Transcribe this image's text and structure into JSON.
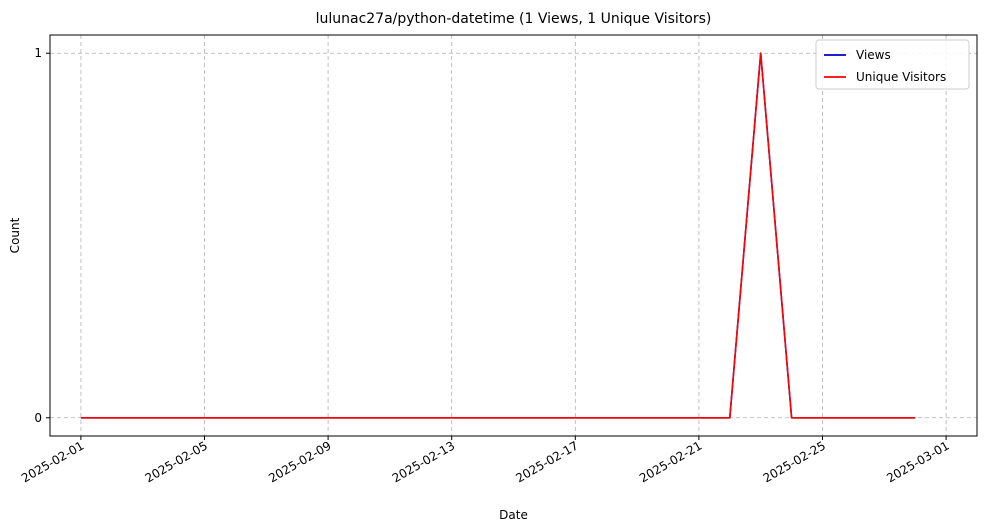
{
  "chart_data": {
    "type": "line",
    "title": "lulunac27a/python-datetime (1 Views, 1 Unique Visitors)",
    "xlabel": "Date",
    "ylabel": "Count",
    "x": [
      "2025-02-01",
      "2025-02-02",
      "2025-02-03",
      "2025-02-04",
      "2025-02-05",
      "2025-02-06",
      "2025-02-07",
      "2025-02-08",
      "2025-02-09",
      "2025-02-10",
      "2025-02-11",
      "2025-02-12",
      "2025-02-13",
      "2025-02-14",
      "2025-02-15",
      "2025-02-16",
      "2025-02-17",
      "2025-02-18",
      "2025-02-19",
      "2025-02-20",
      "2025-02-21",
      "2025-02-22",
      "2025-02-23",
      "2025-02-24",
      "2025-02-25",
      "2025-02-26",
      "2025-02-27",
      "2025-02-28"
    ],
    "series": [
      {
        "name": "Views",
        "color": "#0000cc",
        "values": [
          0,
          0,
          0,
          0,
          0,
          0,
          0,
          0,
          0,
          0,
          0,
          0,
          0,
          0,
          0,
          0,
          0,
          0,
          0,
          0,
          0,
          0,
          1,
          0,
          0,
          0,
          0,
          0
        ]
      },
      {
        "name": "Unique Visitors",
        "color": "#ff0000",
        "values": [
          0,
          0,
          0,
          0,
          0,
          0,
          0,
          0,
          0,
          0,
          0,
          0,
          0,
          0,
          0,
          0,
          0,
          0,
          0,
          0,
          0,
          0,
          1,
          0,
          0,
          0,
          0,
          0
        ]
      }
    ],
    "xticks": [
      "2025-02-01",
      "2025-02-05",
      "2025-02-09",
      "2025-02-13",
      "2025-02-17",
      "2025-02-21",
      "2025-02-25",
      "2025-03-01"
    ],
    "yticks": [
      "0",
      "1"
    ],
    "xlim": [
      "2025-01-31",
      "2025-03-02"
    ],
    "ylim": [
      -0.05,
      1.05
    ],
    "grid": true,
    "grid_style": "dashed",
    "legend_position": "top-right"
  }
}
